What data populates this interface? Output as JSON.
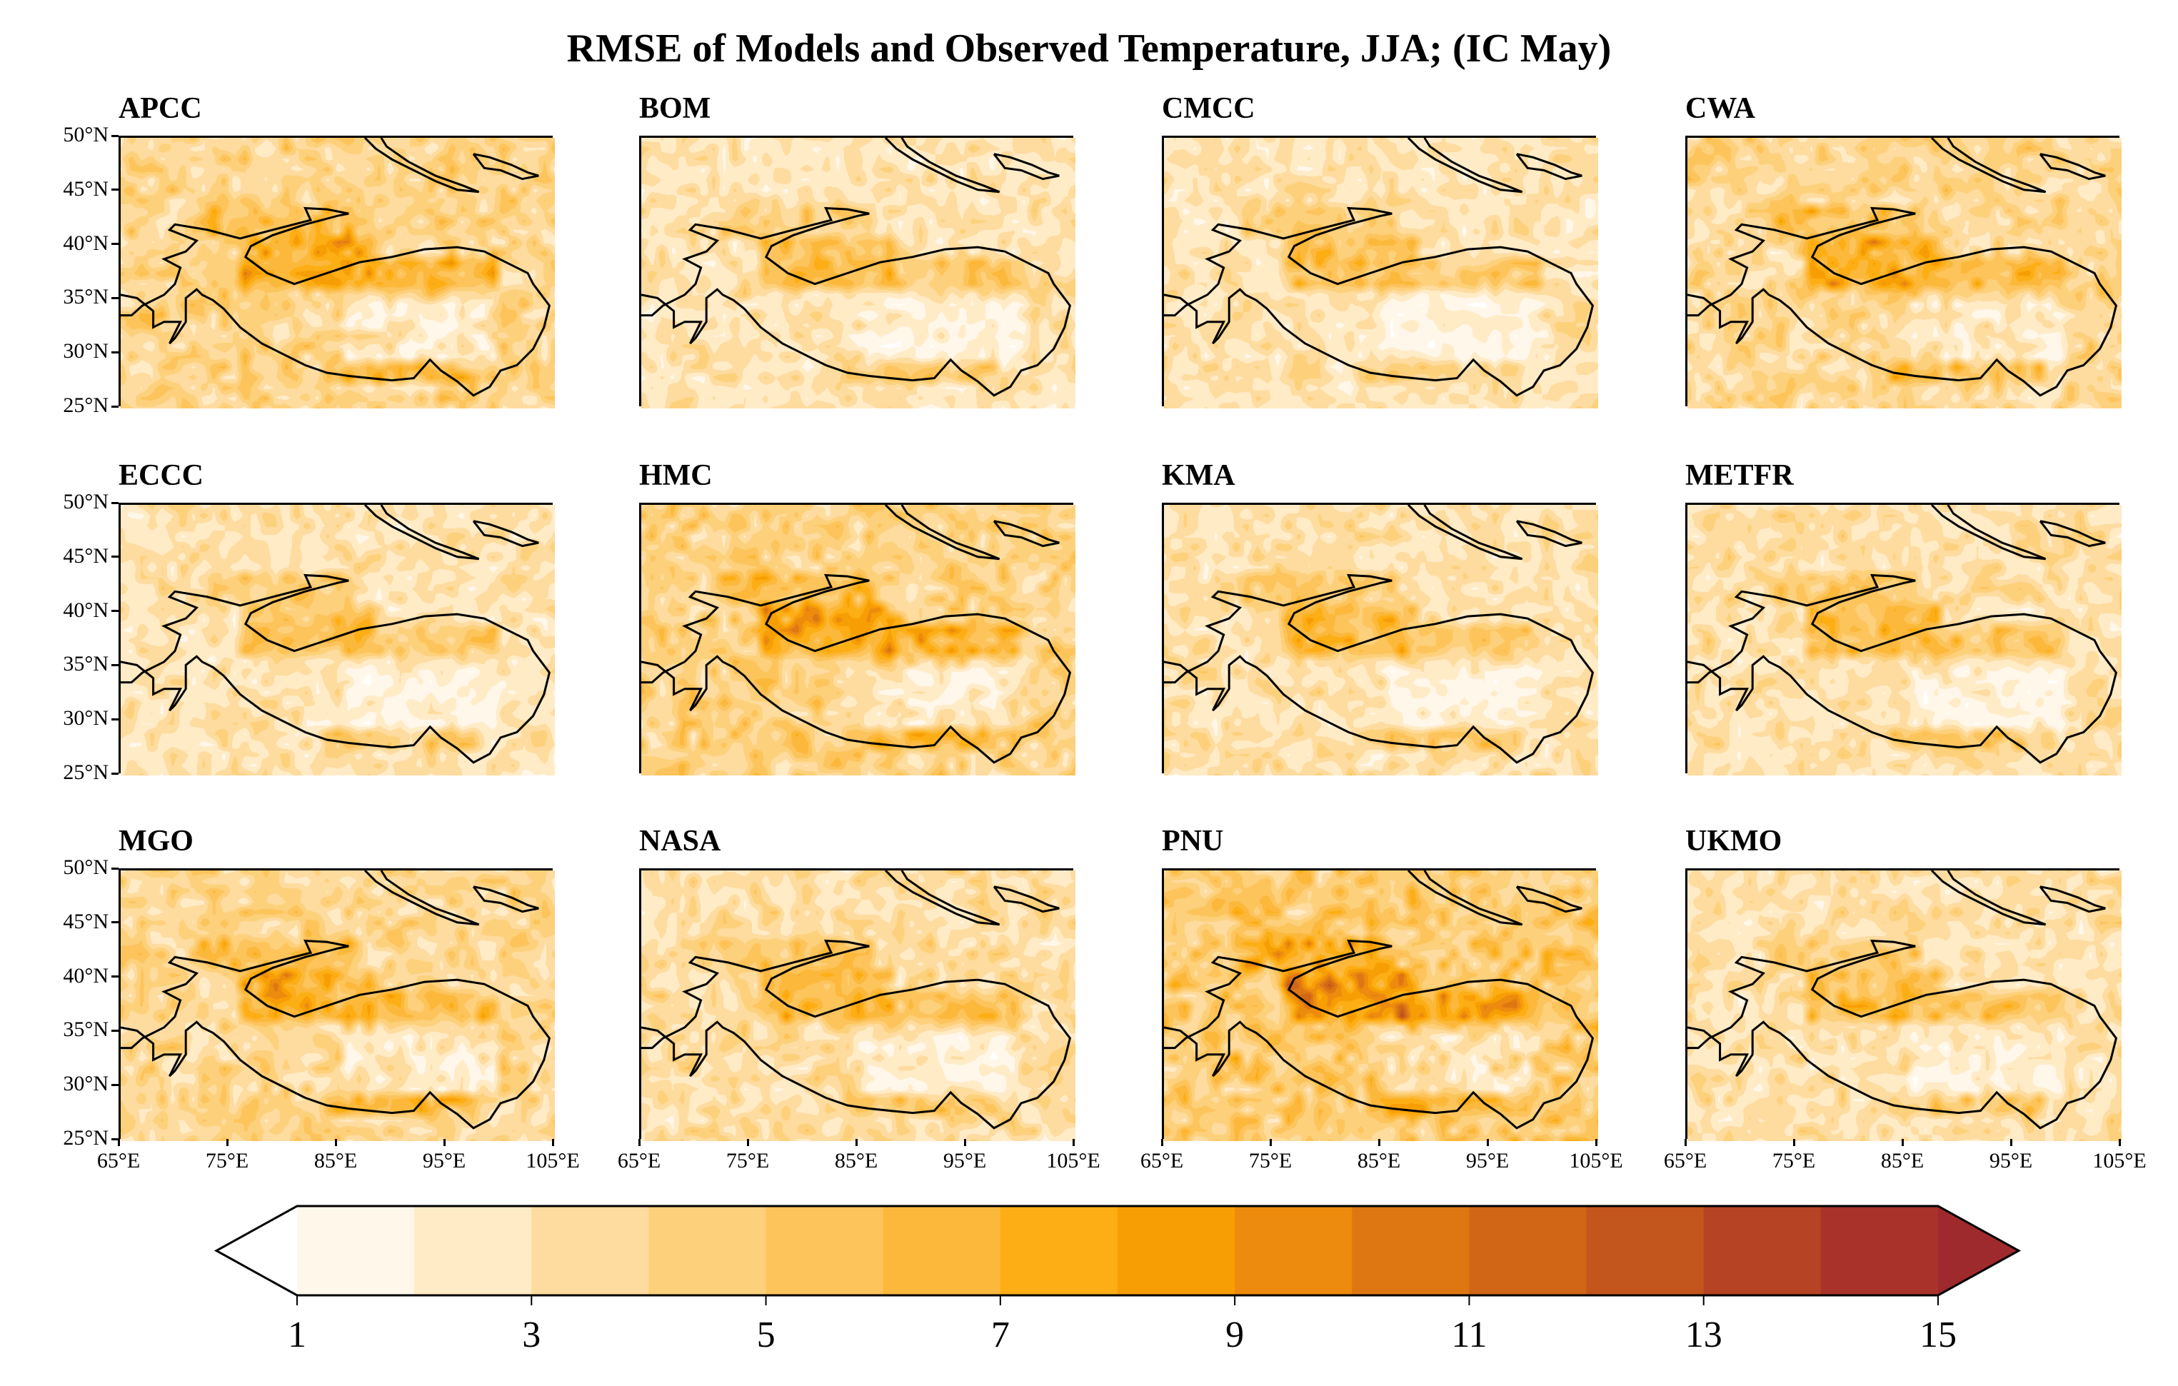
{
  "title": "RMSE of Models and Observed Temperature, JJA;  (IC  May)",
  "chart_data": {
    "type": "heatmap",
    "title": "RMSE of Models and Observed Temperature, JJA;  (IC  May)",
    "panels": [
      "APCC",
      "BOM",
      "CMCC",
      "CWA",
      "ECCC",
      "HMC",
      "KMA",
      "METFR",
      "MGO",
      "NASA",
      "PNU",
      "UKMO"
    ],
    "layout": {
      "rows": 3,
      "cols": 4
    },
    "xlim": [
      65,
      105
    ],
    "ylim": [
      25,
      50
    ],
    "x_ticks": [
      "65°E",
      "75°E",
      "85°E",
      "95°E",
      "105°E"
    ],
    "y_ticks": [
      "50°N",
      "45°N",
      "40°N",
      "35°N",
      "30°N",
      "25°N"
    ],
    "x_tick_values": [
      65,
      75,
      85,
      95,
      105
    ],
    "y_tick_values": [
      50,
      45,
      40,
      35,
      30,
      25
    ],
    "colorbar": {
      "levels": [
        1,
        2,
        3,
        4,
        5,
        6,
        7,
        8,
        9,
        10,
        11,
        12,
        13,
        14,
        15
      ],
      "tick_labels": [
        "1",
        "3",
        "5",
        "7",
        "9",
        "11",
        "13",
        "15"
      ],
      "extend": "both",
      "under_color": "#ffffff",
      "colors": [
        "#fff7ea",
        "#ffebc6",
        "#fedb9e",
        "#fdd07b",
        "#fdc45c",
        "#fcb83b",
        "#fcae14",
        "#f89e05",
        "#ec8b0e",
        "#de7712",
        "#d06616",
        "#c3561c",
        "#b64324",
        "#a9332a"
      ],
      "over_color": "#9f2a2d",
      "orientation": "horizontal",
      "placement": "bottom"
    },
    "overlay": "Tibetan Plateau boundary outline"
  }
}
